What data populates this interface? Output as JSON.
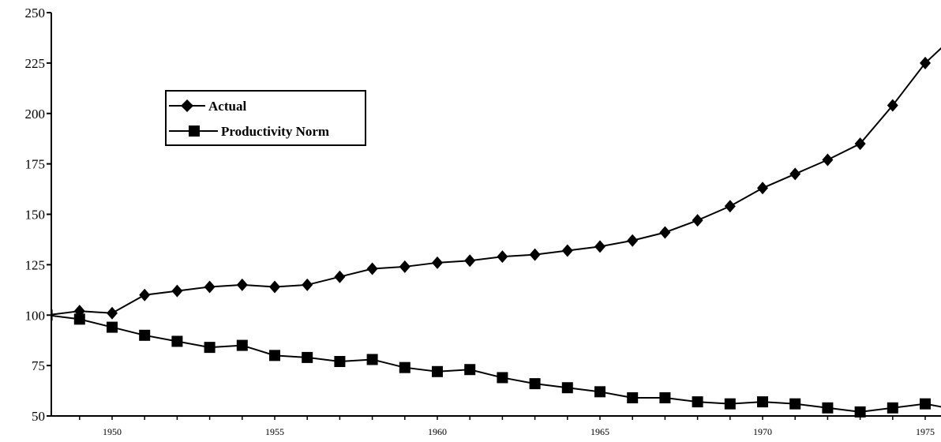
{
  "chart_data": {
    "type": "line",
    "title": "",
    "xlabel": "",
    "ylabel": "",
    "x": [
      1948,
      1949,
      1950,
      1951,
      1952,
      1953,
      1954,
      1955,
      1956,
      1957,
      1958,
      1959,
      1960,
      1961,
      1962,
      1963,
      1964,
      1965,
      1966,
      1967,
      1968,
      1969,
      1970,
      1971,
      1972,
      1973,
      1974,
      1975,
      1976
    ],
    "series": [
      {
        "name": "Actual",
        "marker": "diamond",
        "values": [
          100,
          102,
          101,
          110,
          112,
          114,
          115,
          114,
          115,
          119,
          123,
          124,
          126,
          127,
          129,
          130,
          132,
          134,
          137,
          141,
          147,
          154,
          163,
          170,
          177,
          185,
          204,
          225,
          240
        ]
      },
      {
        "name": "Productivity Norm",
        "marker": "square",
        "values": [
          100,
          98,
          94,
          90,
          87,
          84,
          85,
          80,
          79,
          77,
          78,
          74,
          72,
          73,
          69,
          66,
          64,
          62,
          59,
          59,
          57,
          56,
          57,
          56,
          54,
          52,
          54,
          56,
          53
        ]
      }
    ],
    "ylim": [
      50,
      250
    ],
    "yticks": [
      50,
      75,
      100,
      125,
      150,
      175,
      200,
      225,
      250
    ],
    "xticks": [
      1950,
      1955,
      1960,
      1965,
      1970,
      1975
    ],
    "grid": false,
    "legend_position": "top-left",
    "color": "#000000"
  }
}
